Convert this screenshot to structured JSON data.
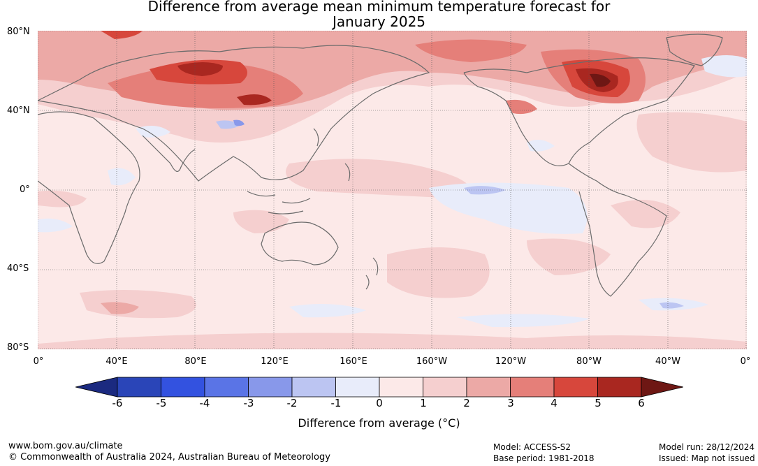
{
  "title": {
    "line1": "Difference from average mean minimum temperature forecast for",
    "line2": "January 2025"
  },
  "map": {
    "lat_labels": [
      "80°N",
      "40°N",
      "0°",
      "40°S",
      "80°S"
    ],
    "lon_labels": [
      "0°",
      "40°E",
      "80°E",
      "120°E",
      "160°E",
      "160°W",
      "120°W",
      "80°W",
      "40°W",
      "0°"
    ]
  },
  "colorbar": {
    "ticks": [
      "-6",
      "-5",
      "-4",
      "-3",
      "-2",
      "-1",
      "0",
      "1",
      "2",
      "3",
      "4",
      "5",
      "6"
    ],
    "colors": [
      "#1b2a80",
      "#2a45b8",
      "#3352e0",
      "#5a74e6",
      "#8898ea",
      "#bcc5f2",
      "#e8ecfa",
      "#fce9e8",
      "#f5cfcf",
      "#eca9a6",
      "#e57f79",
      "#d7473c",
      "#a92720",
      "#6e1714"
    ],
    "label": "Difference from average (°C)"
  },
  "footer": {
    "url": "www.bom.gov.au/climate",
    "copyright": "© Commonwealth of Australia 2024, Australian Bureau of Meteorology",
    "model": "Model: ACCESS-S2",
    "base_period": "Base period: 1981-2018",
    "model_run": "Model run: 28/12/2024",
    "issued": "Issued: Map not issued"
  }
}
